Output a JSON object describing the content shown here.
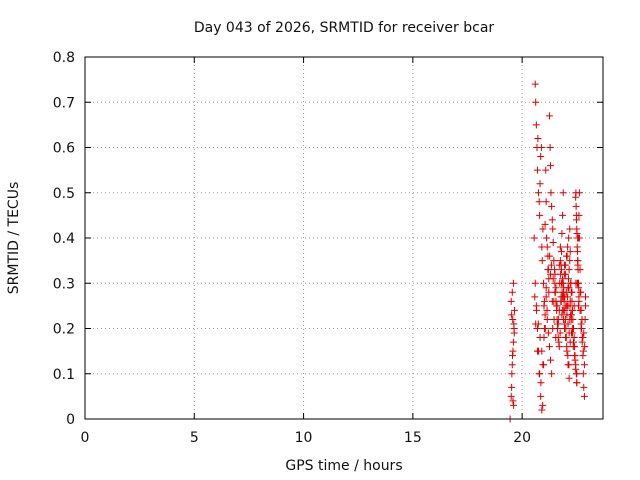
{
  "chart_data": {
    "type": "scatter",
    "title": "Day 043 of 2026, SRMTID for receiver bcar",
    "xlabel": "GPS time / hours",
    "ylabel": "SRMTID / TECUs",
    "xlim": [
      0,
      23.7
    ],
    "ylim": [
      0,
      0.8
    ],
    "xticks": [
      0,
      5,
      10,
      15,
      20
    ],
    "yticks": [
      0,
      0.1,
      0.2,
      0.3,
      0.4,
      0.5,
      0.6,
      0.7,
      0.8
    ],
    "grid": true,
    "marker": "+",
    "color": "#dd0000",
    "series": [
      {
        "name": "SRMTID",
        "x": [
          19.45,
          19.5,
          19.52,
          19.55,
          19.58,
          19.6,
          19.62,
          19.65,
          19.5,
          19.55,
          19.6,
          19.63,
          19.57,
          19.53,
          19.61,
          19.58,
          19.64,
          19.52,
          19.56,
          20.55,
          20.6,
          20.62,
          20.65,
          20.68,
          20.7,
          20.72,
          20.75,
          20.78,
          20.8,
          20.82,
          20.85,
          20.88,
          20.9,
          20.92,
          20.95,
          20.98,
          21.0,
          21.02,
          21.05,
          21.08,
          21.1,
          21.12,
          21.15,
          21.18,
          21.2,
          21.22,
          21.25,
          21.28,
          21.3,
          21.32,
          21.35,
          21.38,
          21.4,
          21.42,
          21.45,
          21.48,
          21.5,
          21.52,
          21.55,
          21.58,
          21.6,
          21.62,
          21.65,
          21.68,
          21.7,
          21.72,
          21.75,
          21.78,
          21.8,
          21.82,
          21.85,
          21.88,
          21.9,
          21.92,
          21.95,
          21.98,
          22.0,
          22.02,
          22.05,
          22.08,
          22.1,
          22.12,
          22.15,
          22.18,
          22.2,
          22.22,
          22.25,
          22.28,
          22.3,
          22.32,
          22.35,
          22.38,
          22.4,
          22.42,
          22.45,
          22.48,
          22.5,
          22.52,
          22.55,
          22.58,
          22.6,
          22.62,
          22.65,
          22.68,
          22.7,
          22.72,
          22.75,
          22.78,
          22.8,
          22.82,
          22.85,
          22.88,
          22.9,
          20.6,
          20.65,
          20.7,
          20.75,
          20.8,
          20.85,
          20.9,
          20.95,
          21.0,
          21.05,
          21.1,
          21.15,
          21.2,
          21.25,
          21.3,
          21.35,
          21.4,
          21.45,
          21.5,
          21.55,
          21.6,
          21.65,
          21.7,
          21.75,
          21.8,
          21.85,
          21.9,
          21.95,
          22.0,
          22.05,
          22.1,
          22.15,
          22.2,
          22.25,
          22.3,
          22.35,
          22.4,
          22.45,
          22.5,
          22.55,
          22.6,
          22.65,
          22.7,
          22.75,
          22.8,
          22.85,
          20.62,
          20.7,
          20.78,
          20.86,
          20.94,
          21.02,
          21.1,
          21.18,
          21.26,
          21.34,
          21.42,
          21.5,
          21.58,
          21.66,
          21.74,
          21.82,
          21.9,
          21.98,
          22.06,
          22.14,
          22.22,
          22.3,
          22.38,
          22.46,
          22.54,
          22.62,
          22.7,
          22.78,
          22.86,
          20.58,
          20.66,
          20.74,
          20.82,
          20.9,
          20.98,
          21.06,
          21.14,
          21.22,
          21.3,
          21.38,
          21.46,
          21.54,
          21.62,
          21.7,
          21.78,
          21.86,
          21.94,
          22.02,
          22.1,
          22.18,
          22.26,
          22.34,
          22.42,
          22.5,
          22.58,
          22.66,
          22.74,
          22.82,
          22.9,
          21.75,
          21.8,
          21.85,
          21.9,
          21.95,
          22.0,
          22.05,
          22.1,
          22.15,
          22.2,
          22.25,
          22.3,
          21.77,
          21.83,
          21.88,
          21.93,
          21.98,
          22.03,
          22.08,
          22.13,
          22.18,
          22.23,
          22.28,
          21.79,
          21.84,
          21.89,
          21.94,
          21.99,
          22.04,
          22.09,
          22.14,
          22.19,
          22.24,
          22.45,
          22.48,
          22.5,
          22.52,
          22.55,
          22.58,
          22.6,
          22.47,
          22.49,
          22.51,
          22.53,
          22.56,
          22.59,
          22.46,
          22.54
        ],
        "y": [
          0.0,
          0.05,
          0.07,
          0.12,
          0.15,
          0.17,
          0.21,
          0.24,
          0.26,
          0.28,
          0.3,
          0.2,
          0.22,
          0.1,
          0.03,
          0.04,
          0.19,
          0.23,
          0.14,
          0.4,
          0.74,
          0.7,
          0.65,
          0.6,
          0.55,
          0.62,
          0.5,
          0.48,
          0.45,
          0.52,
          0.58,
          0.6,
          0.38,
          0.35,
          0.42,
          0.3,
          0.25,
          0.2,
          0.43,
          0.55,
          0.48,
          0.4,
          0.38,
          0.36,
          0.33,
          0.31,
          0.67,
          0.6,
          0.56,
          0.5,
          0.47,
          0.44,
          0.42,
          0.39,
          0.35,
          0.33,
          0.3,
          0.28,
          0.26,
          0.24,
          0.22,
          0.2,
          0.18,
          0.17,
          0.16,
          0.3,
          0.32,
          0.34,
          0.37,
          0.41,
          0.45,
          0.5,
          0.28,
          0.26,
          0.24,
          0.22,
          0.2,
          0.18,
          0.25,
          0.27,
          0.29,
          0.31,
          0.33,
          0.35,
          0.37,
          0.3,
          0.28,
          0.26,
          0.24,
          0.22,
          0.2,
          0.18,
          0.16,
          0.14,
          0.12,
          0.1,
          0.08,
          0.3,
          0.35,
          0.4,
          0.45,
          0.5,
          0.33,
          0.28,
          0.24,
          0.2,
          0.17,
          0.14,
          0.1,
          0.07,
          0.05,
          0.22,
          0.27,
          0.3,
          0.25,
          0.2,
          0.15,
          0.1,
          0.05,
          0.02,
          0.12,
          0.18,
          0.23,
          0.27,
          0.22,
          0.19,
          0.16,
          0.13,
          0.1,
          0.2,
          0.26,
          0.32,
          0.29,
          0.25,
          0.21,
          0.34,
          0.38,
          0.3,
          0.27,
          0.24,
          0.21,
          0.18,
          0.15,
          0.12,
          0.09,
          0.26,
          0.23,
          0.2,
          0.17,
          0.14,
          0.11,
          0.08,
          0.3,
          0.27,
          0.24,
          0.21,
          0.18,
          0.15,
          0.12,
          0.21,
          0.15,
          0.1,
          0.08,
          0.03,
          0.26,
          0.29,
          0.33,
          0.36,
          0.34,
          0.31,
          0.28,
          0.25,
          0.22,
          0.19,
          0.23,
          0.27,
          0.32,
          0.36,
          0.29,
          0.23,
          0.19,
          0.25,
          0.3,
          0.35,
          0.4,
          0.2,
          0.18,
          0.16,
          0.27,
          0.24,
          0.21,
          0.18,
          0.15,
          0.12,
          0.2,
          0.24,
          0.28,
          0.32,
          0.26,
          0.22,
          0.18,
          0.21,
          0.24,
          0.27,
          0.3,
          0.34,
          0.28,
          0.25,
          0.22,
          0.19,
          0.16,
          0.13,
          0.1,
          0.25,
          0.28,
          0.22,
          0.19,
          0.25,
          0.35,
          0.33,
          0.31,
          0.29,
          0.27,
          0.25,
          0.23,
          0.21,
          0.19,
          0.17,
          0.22,
          0.24,
          0.26,
          0.28,
          0.3,
          0.32,
          0.34,
          0.36,
          0.38,
          0.4,
          0.42,
          0.3,
          0.28,
          0.26,
          0.24,
          0.22,
          0.2,
          0.18,
          0.16,
          0.14,
          0.12,
          0.25,
          0.23,
          0.49,
          0.45,
          0.42,
          0.38,
          0.34,
          0.3,
          0.26,
          0.47,
          0.44,
          0.41,
          0.37,
          0.33,
          0.29,
          0.5,
          0.4
        ]
      }
    ]
  }
}
